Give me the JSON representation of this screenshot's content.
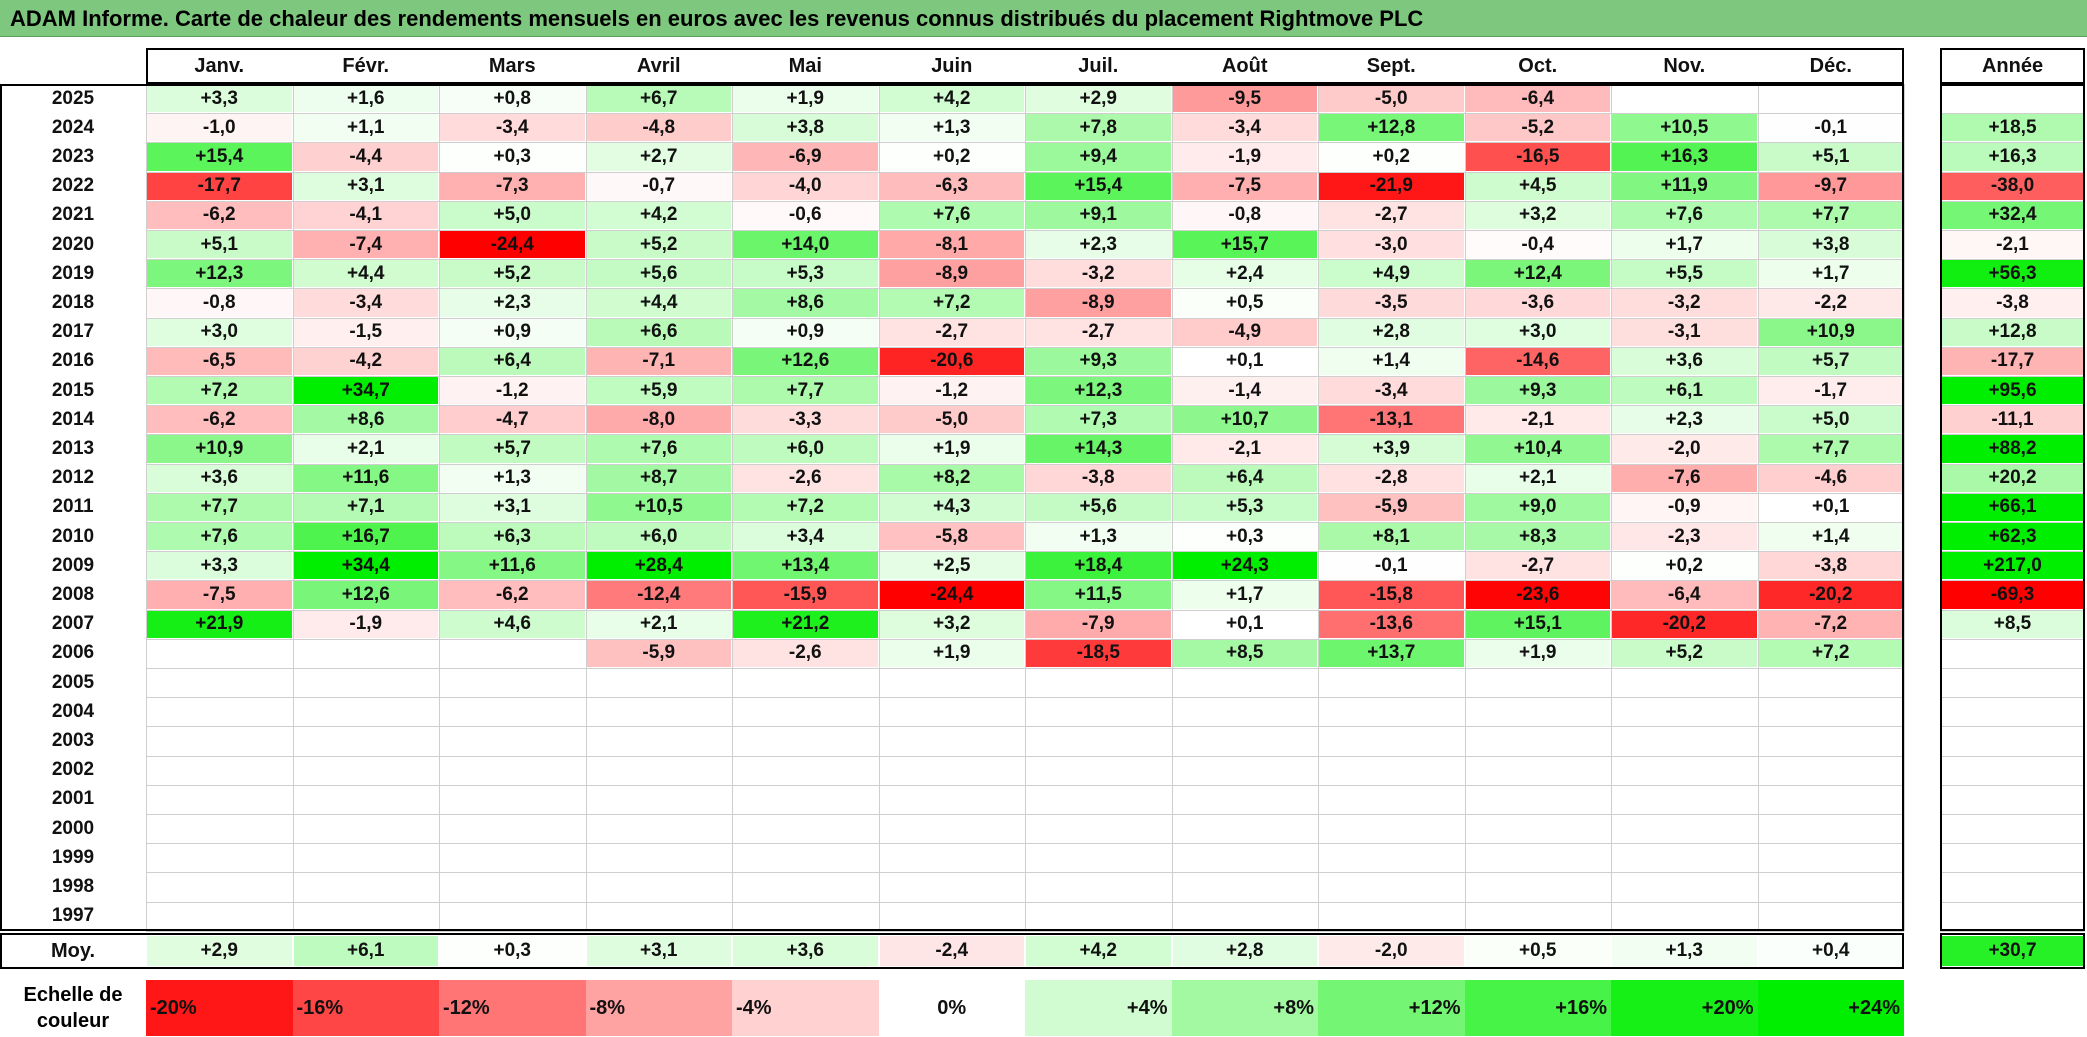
{
  "title": "ADAM Informe. Carte de chaleur des rendements mensuels en euros avec les revenus connus distribués du placement Rightmove PLC",
  "chart_data": {
    "type": "heatmap",
    "columns": [
      "Janv.",
      "Févr.",
      "Mars",
      "Avril",
      "Mai",
      "Juin",
      "Juil.",
      "Août",
      "Sept.",
      "Oct.",
      "Nov.",
      "Déc."
    ],
    "year_column_label": "Année",
    "rows": [
      {
        "year": "2025",
        "months": [
          "+3,3",
          "+1,6",
          "+0,8",
          "+6,7",
          "+1,9",
          "+4,2",
          "+2,9",
          "-9,5",
          "-5,0",
          "-6,4",
          "",
          ""
        ],
        "annual": ""
      },
      {
        "year": "2024",
        "months": [
          "-1,0",
          "+1,1",
          "-3,4",
          "-4,8",
          "+3,8",
          "+1,3",
          "+7,8",
          "-3,4",
          "+12,8",
          "-5,2",
          "+10,5",
          "-0,1"
        ],
        "annual": "+18,5"
      },
      {
        "year": "2023",
        "months": [
          "+15,4",
          "-4,4",
          "+0,3",
          "+2,7",
          "-6,9",
          "+0,2",
          "+9,4",
          "-1,9",
          "+0,2",
          "-16,5",
          "+16,3",
          "+5,1"
        ],
        "annual": "+16,3"
      },
      {
        "year": "2022",
        "months": [
          "-17,7",
          "+3,1",
          "-7,3",
          "-0,7",
          "-4,0",
          "-6,3",
          "+15,4",
          "-7,5",
          "-21,9",
          "+4,5",
          "+11,9",
          "-9,7"
        ],
        "annual": "-38,0"
      },
      {
        "year": "2021",
        "months": [
          "-6,2",
          "-4,1",
          "+5,0",
          "+4,2",
          "-0,6",
          "+7,6",
          "+9,1",
          "-0,8",
          "-2,7",
          "+3,2",
          "+7,6",
          "+7,7"
        ],
        "annual": "+32,4"
      },
      {
        "year": "2020",
        "months": [
          "+5,1",
          "-7,4",
          "-24,4",
          "+5,2",
          "+14,0",
          "-8,1",
          "+2,3",
          "+15,7",
          "-3,0",
          "-0,4",
          "+1,7",
          "+3,8"
        ],
        "annual": "-2,1"
      },
      {
        "year": "2019",
        "months": [
          "+12,3",
          "+4,4",
          "+5,2",
          "+5,6",
          "+5,3",
          "-8,9",
          "-3,2",
          "+2,4",
          "+4,9",
          "+12,4",
          "+5,5",
          "+1,7"
        ],
        "annual": "+56,3"
      },
      {
        "year": "2018",
        "months": [
          "-0,8",
          "-3,4",
          "+2,3",
          "+4,4",
          "+8,6",
          "+7,2",
          "-8,9",
          "+0,5",
          "-3,5",
          "-3,6",
          "-3,2",
          "-2,2"
        ],
        "annual": "-3,8"
      },
      {
        "year": "2017",
        "months": [
          "+3,0",
          "-1,5",
          "+0,9",
          "+6,6",
          "+0,9",
          "-2,7",
          "-2,7",
          "-4,9",
          "+2,8",
          "+3,0",
          "-3,1",
          "+10,9"
        ],
        "annual": "+12,8"
      },
      {
        "year": "2016",
        "months": [
          "-6,5",
          "-4,2",
          "+6,4",
          "-7,1",
          "+12,6",
          "-20,6",
          "+9,3",
          "+0,1",
          "+1,4",
          "-14,6",
          "+3,6",
          "+5,7"
        ],
        "annual": "-17,7"
      },
      {
        "year": "2015",
        "months": [
          "+7,2",
          "+34,7",
          "-1,2",
          "+5,9",
          "+7,7",
          "-1,2",
          "+12,3",
          "-1,4",
          "-3,4",
          "+9,3",
          "+6,1",
          "-1,7"
        ],
        "annual": "+95,6"
      },
      {
        "year": "2014",
        "months": [
          "-6,2",
          "+8,6",
          "-4,7",
          "-8,0",
          "-3,3",
          "-5,0",
          "+7,3",
          "+10,7",
          "-13,1",
          "-2,1",
          "+2,3",
          "+5,0"
        ],
        "annual": "-11,1"
      },
      {
        "year": "2013",
        "months": [
          "+10,9",
          "+2,1",
          "+5,7",
          "+7,6",
          "+6,0",
          "+1,9",
          "+14,3",
          "-2,1",
          "+3,9",
          "+10,4",
          "-2,0",
          "+7,7"
        ],
        "annual": "+88,2"
      },
      {
        "year": "2012",
        "months": [
          "+3,6",
          "+11,6",
          "+1,3",
          "+8,7",
          "-2,6",
          "+8,2",
          "-3,8",
          "+6,4",
          "-2,8",
          "+2,1",
          "-7,6",
          "-4,6"
        ],
        "annual": "+20,2"
      },
      {
        "year": "2011",
        "months": [
          "+7,7",
          "+7,1",
          "+3,1",
          "+10,5",
          "+7,2",
          "+4,3",
          "+5,6",
          "+5,3",
          "-5,9",
          "+9,0",
          "-0,9",
          "+0,1"
        ],
        "annual": "+66,1"
      },
      {
        "year": "2010",
        "months": [
          "+7,6",
          "+16,7",
          "+6,3",
          "+6,0",
          "+3,4",
          "-5,8",
          "+1,3",
          "+0,3",
          "+8,1",
          "+8,3",
          "-2,3",
          "+1,4"
        ],
        "annual": "+62,3"
      },
      {
        "year": "2009",
        "months": [
          "+3,3",
          "+34,4",
          "+11,6",
          "+28,4",
          "+13,4",
          "+2,5",
          "+18,4",
          "+24,3",
          "-0,1",
          "-2,7",
          "+0,2",
          "-3,8"
        ],
        "annual": "+217,0"
      },
      {
        "year": "2008",
        "months": [
          "-7,5",
          "+12,6",
          "-6,2",
          "-12,4",
          "-15,9",
          "-24,4",
          "+11,5",
          "+1,7",
          "-15,8",
          "-23,6",
          "-6,4",
          "-20,2"
        ],
        "annual": "-69,3"
      },
      {
        "year": "2007",
        "months": [
          "+21,9",
          "-1,9",
          "+4,6",
          "+2,1",
          "+21,2",
          "+3,2",
          "-7,9",
          "+0,1",
          "-13,6",
          "+15,1",
          "-20,2",
          "-7,2"
        ],
        "annual": "+8,5"
      },
      {
        "year": "2006",
        "months": [
          "",
          "",
          "",
          "-5,9",
          "-2,6",
          "+1,9",
          "-18,5",
          "+8,5",
          "+13,7",
          "+1,9",
          "+5,2",
          "+7,2"
        ],
        "annual": ""
      },
      {
        "year": "2005",
        "months": [
          "",
          "",
          "",
          "",
          "",
          "",
          "",
          "",
          "",
          "",
          "",
          ""
        ],
        "annual": ""
      },
      {
        "year": "2004",
        "months": [
          "",
          "",
          "",
          "",
          "",
          "",
          "",
          "",
          "",
          "",
          "",
          ""
        ],
        "annual": ""
      },
      {
        "year": "2003",
        "months": [
          "",
          "",
          "",
          "",
          "",
          "",
          "",
          "",
          "",
          "",
          "",
          ""
        ],
        "annual": ""
      },
      {
        "year": "2002",
        "months": [
          "",
          "",
          "",
          "",
          "",
          "",
          "",
          "",
          "",
          "",
          "",
          ""
        ],
        "annual": ""
      },
      {
        "year": "2001",
        "months": [
          "",
          "",
          "",
          "",
          "",
          "",
          "",
          "",
          "",
          "",
          "",
          ""
        ],
        "annual": ""
      },
      {
        "year": "2000",
        "months": [
          "",
          "",
          "",
          "",
          "",
          "",
          "",
          "",
          "",
          "",
          "",
          ""
        ],
        "annual": ""
      },
      {
        "year": "1999",
        "months": [
          "",
          "",
          "",
          "",
          "",
          "",
          "",
          "",
          "",
          "",
          "",
          ""
        ],
        "annual": ""
      },
      {
        "year": "1998",
        "months": [
          "",
          "",
          "",
          "",
          "",
          "",
          "",
          "",
          "",
          "",
          "",
          ""
        ],
        "annual": ""
      },
      {
        "year": "1997",
        "months": [
          "",
          "",
          "",
          "",
          "",
          "",
          "",
          "",
          "",
          "",
          "",
          ""
        ],
        "annual": ""
      }
    ],
    "average": {
      "label": "Moy.",
      "months": [
        "+2,9",
        "+6,1",
        "+0,3",
        "+3,1",
        "+3,6",
        "-2,4",
        "+4,2",
        "+2,8",
        "-2,0",
        "+0,5",
        "+1,3",
        "+0,4"
      ],
      "annual": "+30,7"
    },
    "color_scale": {
      "label_line1": "Echelle de",
      "label_line2": "couleur",
      "steps": [
        {
          "label": "-20%",
          "value": -20
        },
        {
          "label": "-16%",
          "value": -16
        },
        {
          "label": "-12%",
          "value": -12
        },
        {
          "label": "-8%",
          "value": -8
        },
        {
          "label": "-4%",
          "value": -4
        },
        {
          "label": "0%",
          "value": 0
        },
        {
          "label": "+4%",
          "value": 4
        },
        {
          "label": "+8%",
          "value": 8
        },
        {
          "label": "+12%",
          "value": 12
        },
        {
          "label": "+16%",
          "value": 16
        },
        {
          "label": "+20%",
          "value": 20
        },
        {
          "label": "+24%",
          "value": 24
        }
      ]
    },
    "colors": {
      "negative_max": "#ff0000",
      "neutral": "#ffffff",
      "positive_max": "#00ee00",
      "title_background": "#7ec77e"
    }
  }
}
